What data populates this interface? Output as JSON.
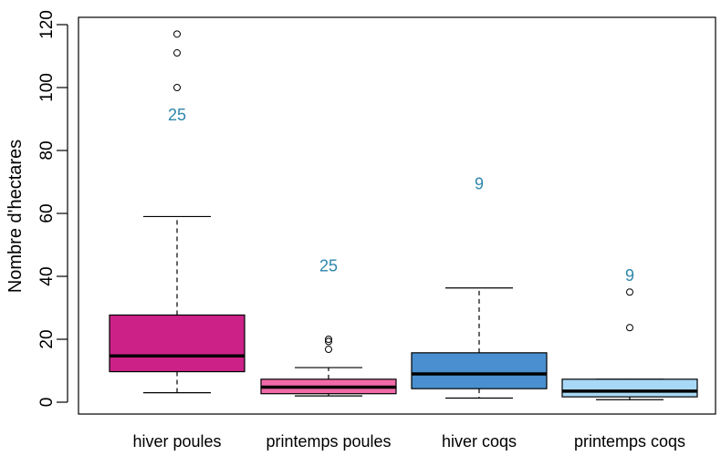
{
  "chart_data": {
    "type": "boxplot",
    "title": "",
    "xlabel": "",
    "ylabel": "Nombre d'hectares",
    "ylim": [
      -4,
      124
    ],
    "yticks": [
      0,
      20,
      40,
      60,
      80,
      100,
      120
    ],
    "grid": false,
    "count_color": "#2e86ab",
    "categories": [
      "hiver poules",
      "printemps poules",
      "hiver coqs",
      "printemps coqs"
    ],
    "boxes": [
      {
        "name": "hiver poules",
        "color": "#cc2288",
        "whisker_low": 3,
        "q1": 9.7,
        "median": 14.7,
        "q3": 27.7,
        "whisker_high": 59,
        "outliers": [
          100,
          111,
          117
        ],
        "n": "25"
      },
      {
        "name": "printemps poules",
        "color": "#f06aa8",
        "whisker_low": 2,
        "q1": 2.7,
        "median": 4.8,
        "q3": 7.3,
        "whisker_high": 11,
        "outliers": [
          16.8,
          19.3,
          20
        ],
        "n": "25"
      },
      {
        "name": "hiver coqs",
        "color": "#4a90d0",
        "whisker_low": 1.3,
        "q1": 4.3,
        "median": 9,
        "q3": 15.7,
        "whisker_high": 36.3,
        "outliers": [],
        "n": "9"
      },
      {
        "name": "printemps coqs",
        "color": "#a8d8f5",
        "whisker_low": 0.8,
        "q1": 1.7,
        "median": 3.5,
        "q3": 7.3,
        "whisker_high": 7.3,
        "outliers": [
          23.7,
          35
        ],
        "n": "9"
      }
    ],
    "count_positions": [
      91,
      43,
      69,
      40
    ]
  }
}
